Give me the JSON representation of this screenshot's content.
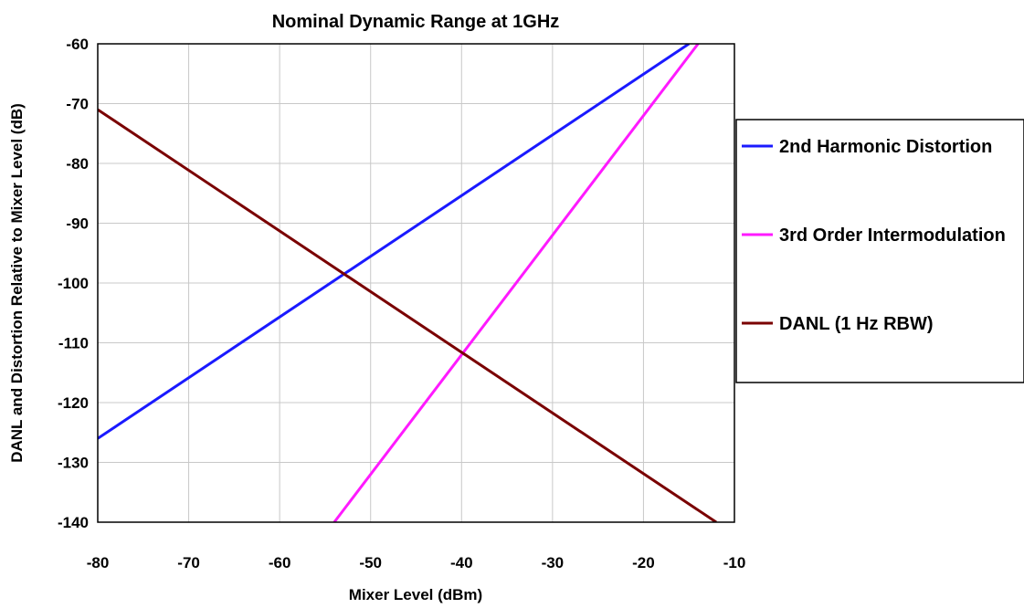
{
  "chart_data": {
    "type": "line",
    "title": "Nominal Dynamic Range at 1GHz",
    "xlabel": "Mixer Level (dBm)",
    "ylabel": "DANL and Distortion Relative to Mixer Level (dB)",
    "xlim": [
      -80,
      -10
    ],
    "ylim": [
      -140,
      -60
    ],
    "x_ticks": [
      "-80",
      "-70",
      "-60",
      "-50",
      "-40",
      "-30",
      "-20",
      "-10"
    ],
    "y_ticks": [
      "-60",
      "-70",
      "-80",
      "-90",
      "-100",
      "-110",
      "-120",
      "-130",
      "-140"
    ],
    "grid": true,
    "legend_position": "right",
    "series": [
      {
        "name": "2nd Harmonic Distortion",
        "color": "#1a1aff",
        "x": [
          -80,
          -15
        ],
        "y": [
          -126,
          -60
        ]
      },
      {
        "name": "3rd Order Intermodulation",
        "color": "#ff1aff",
        "x": [
          -54,
          -14
        ],
        "y": [
          -140,
          -60
        ]
      },
      {
        "name": "DANL (1 Hz RBW)",
        "color": "#7a0000",
        "x": [
          -80,
          -12
        ],
        "y": [
          -71,
          -140
        ]
      }
    ]
  }
}
